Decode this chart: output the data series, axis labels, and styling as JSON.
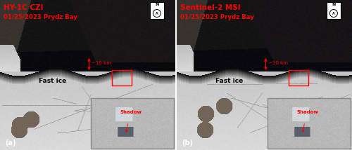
{
  "figsize": [
    5.0,
    2.14
  ],
  "dpi": 100,
  "panel_a": {
    "title_line1": "HY-1C CZI",
    "title_line2": "01/25/2023 Prydz Bay",
    "label": "(a)",
    "fast_ice_label": "Fast ice",
    "distance_label": "~10 km",
    "shadow_label": "Shadow"
  },
  "panel_b": {
    "title_line1": "Sentinel-2 MSI",
    "title_line2": "01/25/2023 Prydz Bay",
    "label": "(b)",
    "fast_ice_label": "Fast ice",
    "distance_label": "~10 km",
    "shadow_label": "Shadow"
  },
  "title_color": "#ff0000",
  "annotation_color": "#ff0000",
  "fast_ice_color": "#000000",
  "shadow_label_color": "#ff0000",
  "north_box_color": "#ffffff",
  "panel_label_color": "#ffffff",
  "inset_border_color": "#888888",
  "rect_color": "#ff0000"
}
